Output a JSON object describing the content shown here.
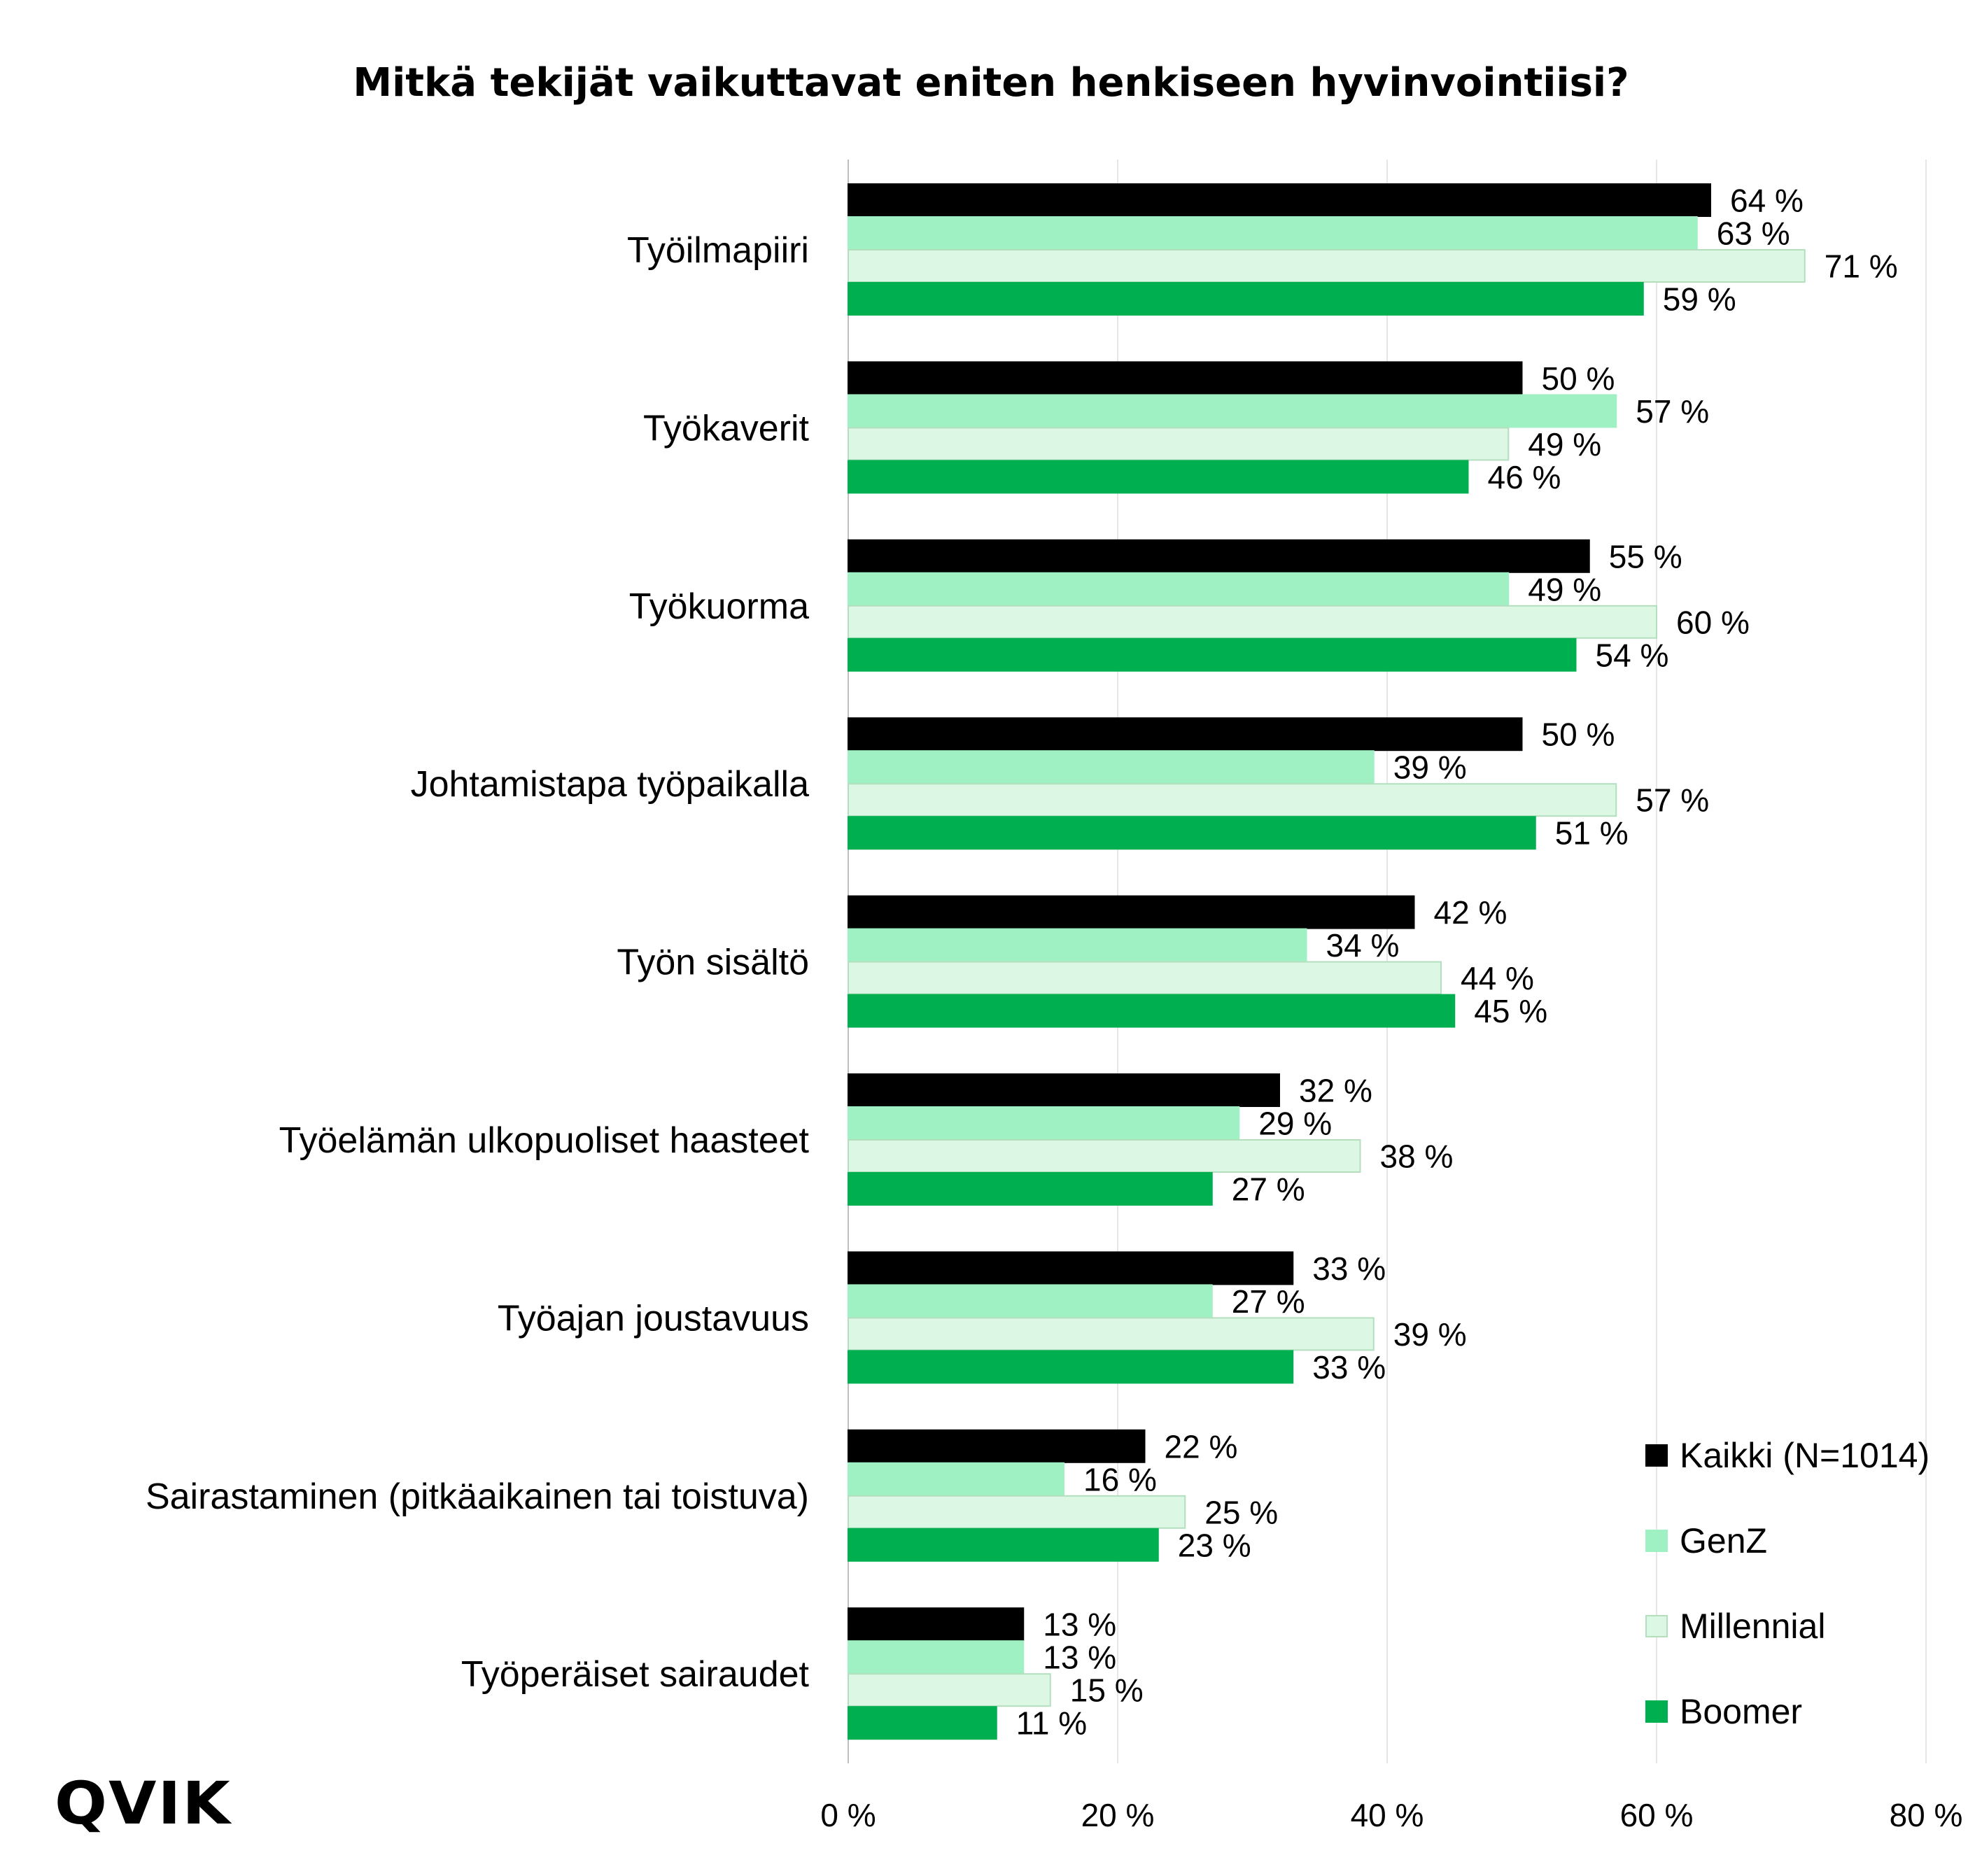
{
  "title": "Mitkä tekijät vaikuttavat eniten henkiseen hyvinvointiisi?",
  "logo_text": "QVIK",
  "chart_data": {
    "type": "bar",
    "orientation": "horizontal",
    "title": "Mitkä tekijät vaikuttavat eniten henkiseen hyvinvointiisi?",
    "categories": [
      "Työilmapiiri",
      "Työkaverit",
      "Työkuorma",
      "Johtamistapa työpaikalla",
      "Työn sisältö",
      "Työelämän ulkopuoliset haasteet",
      "Työajan joustavuus",
      "Sairastaminen (pitkäaikainen tai toistuva)",
      "Työperäiset sairaudet"
    ],
    "series": [
      {
        "name": "Kaikki (N=1014)",
        "color": "#000000",
        "border": "#000000",
        "values": [
          64,
          50,
          55,
          50,
          42,
          32,
          33,
          22,
          13
        ],
        "labels": [
          "64 %",
          "50 %",
          "55 %",
          "50 %",
          "42 %",
          "32 %",
          "33 %",
          "22 %",
          "13 %"
        ]
      },
      {
        "name": "GenZ",
        "color": "#9ff0c2",
        "border": "#9ff0c2",
        "values": [
          63,
          57,
          49,
          39,
          34,
          29,
          27,
          16,
          13
        ],
        "labels": [
          "63 %",
          "57 %",
          "49 %",
          "39 %",
          "34 %",
          "29 %",
          "27 %",
          "16 %",
          "13 %"
        ]
      },
      {
        "name": "Millennial",
        "color": "#dcf8e5",
        "border": "#b3dfbf",
        "values": [
          71,
          49,
          60,
          57,
          44,
          38,
          39,
          25,
          15
        ],
        "labels": [
          "71 %",
          "49 %",
          "60 %",
          "57 %",
          "44 %",
          "38 %",
          "39 %",
          "25 %",
          "15 %"
        ]
      },
      {
        "name": "Boomer",
        "color": "#00b050",
        "border": "#00b050",
        "values": [
          59,
          46,
          54,
          51,
          45,
          27,
          33,
          23,
          11
        ],
        "labels": [
          "59 %",
          "46 %",
          "54 %",
          "51 %",
          "45 %",
          "27 %",
          "33 %",
          "23 %",
          "11 %"
        ]
      }
    ],
    "xlim": [
      0,
      80
    ],
    "xticks": [
      0,
      20,
      40,
      60,
      80
    ],
    "xtick_labels": [
      "0 %",
      "20 %",
      "40 %",
      "60 %",
      "80 %"
    ],
    "grid": true,
    "legend_position": "bottom-right",
    "xlabel": "",
    "ylabel": ""
  }
}
